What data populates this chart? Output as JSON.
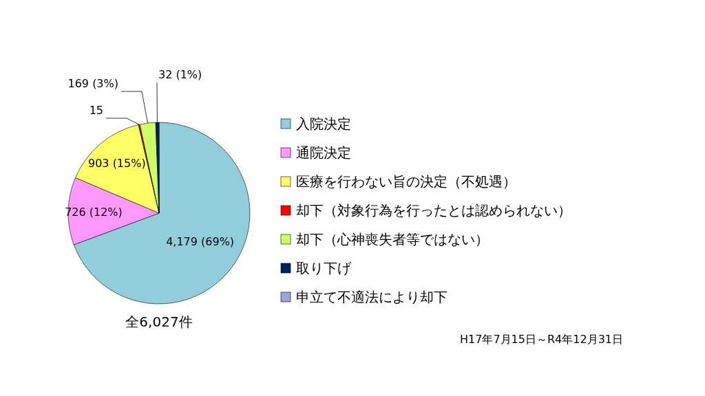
{
  "chart_data": {
    "type": "pie",
    "categories": [
      "入院決定",
      "通院決定",
      "医療を行わない旨の決定（不処遇）",
      "却下（対象行為を行ったとは認められない）",
      "却下（心神喪失者等ではない）",
      "取り下げ",
      "申立て不適法により却下"
    ],
    "values": [
      4179,
      726,
      903,
      15,
      169,
      32,
      3
    ],
    "colors": [
      "#92cddc",
      "#ff99ff",
      "#ffff66",
      "#ff0000",
      "#ccff66",
      "#002060",
      "#95a8d6"
    ],
    "value_labels": [
      "4,179 (69%)",
      "726 (12%)",
      "903 (15%)",
      "15",
      "169 (3%)",
      "32 (1%)",
      null
    ],
    "legend": "right",
    "annotations": [
      "全6,027件",
      "H17年7月15日～R4年12月31日"
    ]
  }
}
